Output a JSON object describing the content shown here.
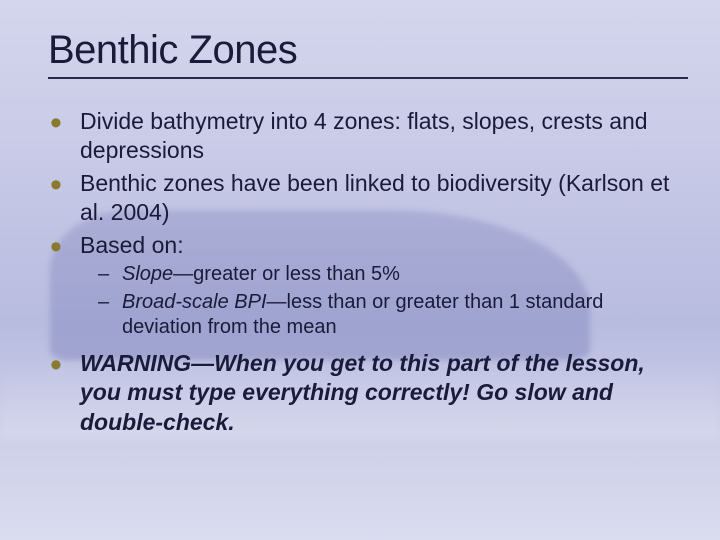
{
  "title": "Benthic Zones",
  "bullets": {
    "b1": "Divide bathymetry into 4 zones:  flats, slopes, crests and depressions",
    "b2": "Benthic zones have been linked to biodiversity (Karlson et al. 2004)",
    "b3": "Based on:",
    "sub1_em": "Slope",
    "sub1_rest": "—greater or less than 5%",
    "sub2_em": "Broad-scale BPI",
    "sub2_rest": "—less than or greater than 1 standard deviation from the mean",
    "b4_em": "WARNING—When you get to this part of the lesson, you must type everything correctly!  Go slow and double-check."
  },
  "colors": {
    "text": "#1a1a3a",
    "bullet": "#8a7a2e",
    "bg_top": "#d4d6ed",
    "bg_bottom": "#dadcf0"
  }
}
